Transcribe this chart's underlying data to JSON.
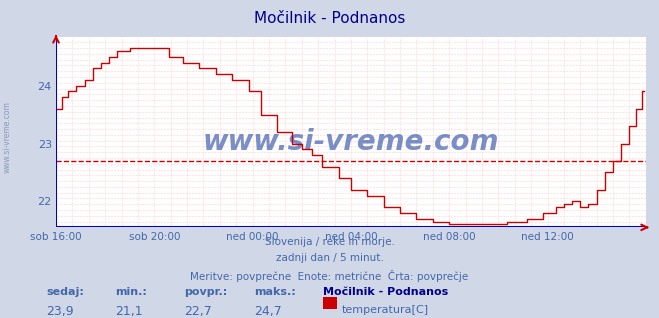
{
  "title": "Močilnik - Podnanos",
  "title_color": "#00008b",
  "bg_color": "#d0d8e8",
  "plot_bg_color": "#ffffff",
  "line_color": "#cc0000",
  "avg_value": 22.7,
  "y_min": 21.55,
  "y_max": 24.85,
  "y_ticks": [
    22,
    23,
    24
  ],
  "x_labels": [
    "sob 16:00",
    "sob 20:00",
    "ned 00:00",
    "ned 04:00",
    "ned 08:00",
    "ned 12:00"
  ],
  "x_ticks_pos": [
    0,
    48,
    96,
    144,
    192,
    240
  ],
  "n_points": 288,
  "footer_lines": [
    "Slovenija / reke in morje.",
    "zadnji dan / 5 minut.",
    "Meritve: povprečne  Enote: metrične  Črta: povprečje"
  ],
  "footer_color": "#4466aa",
  "stat_labels": [
    "sedaj:",
    "min.:",
    "povpr.:",
    "maks.:"
  ],
  "stat_values": [
    "23,9",
    "21,1",
    "22,7",
    "24,7"
  ],
  "stat_color": "#4466aa",
  "legend_title": "Močilnik - Podnanos",
  "legend_label": "temperatura[C]",
  "legend_color": "#cc0000",
  "watermark": "www.si-vreme.com",
  "watermark_color": "#3355aa",
  "left_label": "www.si-vreme.com",
  "left_label_color": "#8899bb",
  "grid_color": "#ffaaaa",
  "axis_color": "#0000cc",
  "arrow_color": "#cc0000"
}
